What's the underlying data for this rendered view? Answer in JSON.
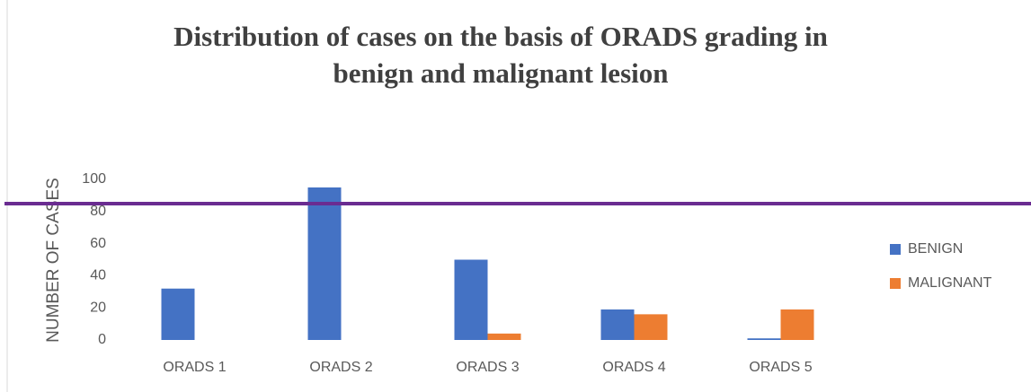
{
  "chart_data": {
    "type": "bar",
    "title": [
      "Distribution of cases on the basis of ORADS grading in",
      "benign and malignant lesion"
    ],
    "y_label": "NUMBER OF CASES",
    "categories": [
      "ORADS 1",
      "ORADS 2",
      "ORADS 3",
      "ORADS 4",
      "ORADS 5"
    ],
    "series": [
      {
        "name": "BENIGN",
        "color": "#4472c4",
        "values": [
          32,
          95,
          50,
          19,
          1
        ]
      },
      {
        "name": "MALIGNANT",
        "color": "#ed7d31",
        "values": [
          0,
          0,
          4,
          16,
          19
        ]
      }
    ],
    "ylim": [
      0,
      100
    ],
    "yticks": [
      0,
      20,
      40,
      60,
      80,
      100
    ],
    "grid": false,
    "legend": "right"
  }
}
